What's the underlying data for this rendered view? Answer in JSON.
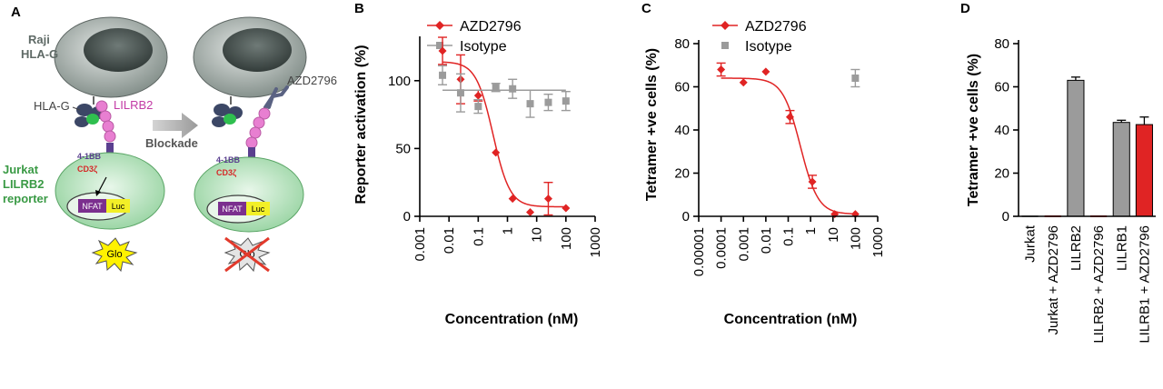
{
  "panels": {
    "a": {
      "letter": "A",
      "cell_top_label_1": "Raji",
      "cell_top_label_2": "HLA-G",
      "hla_label": "HLA-G",
      "lilrb2_label": "LILRB2",
      "antibody_label": "AZD2796",
      "blockade_label": "Blockade",
      "reporter_label_1": "Jurkat",
      "reporter_label_2": "LILRB2",
      "reporter_label_3": "reporter",
      "domain_1": "4-1BB",
      "domain_2": "CD3ζ",
      "nfat_label": "NFAT",
      "luc_label": "Luc",
      "glo_label": "Glo",
      "colors": {
        "cell_gray": "#8e9a95",
        "nucleus": "#4a5552",
        "reporter_green": "#bfe3c4",
        "lilrb2_pink": "#e87fd1",
        "arrow_gray": "#b5b5b5",
        "nfat_purple": "#7b2f8e",
        "luc_yellow": "#f2ef27",
        "burst_yellow": "#fff200",
        "cross_red": "#e23a2c"
      }
    },
    "b": {
      "letter": "B"
    },
    "c": {
      "letter": "C"
    },
    "d": {
      "letter": "D"
    }
  },
  "chart_data": [
    {
      "panel": "B",
      "type": "scatter",
      "xscale": "log",
      "xlim": [
        0.001,
        1000
      ],
      "ylim": [
        0,
        130
      ],
      "xlabel": "Concentration (nM)",
      "ylabel": "Reporter activation (%)",
      "x_ticks": [
        0.001,
        0.01,
        0.1,
        1,
        10,
        100,
        1000
      ],
      "x_tick_labels": [
        "0.001",
        "0.01",
        "0.1",
        "1",
        "10",
        "100",
        "1000"
      ],
      "y_ticks": [
        0,
        50,
        100
      ],
      "y_tick_labels": [
        "0",
        "50",
        "100"
      ],
      "legend_position": "top-left",
      "series": [
        {
          "name": "AZD2796",
          "color": "#e02424",
          "marker": "diamond",
          "points": [
            {
              "x": 0.006,
              "y": 122,
              "err": 10
            },
            {
              "x": 0.025,
              "y": 101,
              "err": 18
            },
            {
              "x": 0.1,
              "y": 89,
              "err": 4
            },
            {
              "x": 0.4,
              "y": 47,
              "err": 0
            },
            {
              "x": 1.5,
              "y": 13,
              "err": 0
            },
            {
              "x": 6,
              "y": 3,
              "err": 0
            },
            {
              "x": 25,
              "y": 13,
              "err": 12
            },
            {
              "x": 100,
              "y": 6,
              "err": 0
            }
          ],
          "fit": {
            "top": 114,
            "bottom": 7,
            "ic50": 0.32,
            "hill": 1.5
          }
        },
        {
          "name": "Isotype",
          "color": "#9b9b9b",
          "marker": "square",
          "points": [
            {
              "x": 0.006,
              "y": 104,
              "err": 7
            },
            {
              "x": 0.025,
              "y": 91,
              "err": 14
            },
            {
              "x": 0.1,
              "y": 81,
              "err": 5
            },
            {
              "x": 0.4,
              "y": 95,
              "err": 3
            },
            {
              "x": 1.5,
              "y": 94,
              "err": 7
            },
            {
              "x": 6,
              "y": 83,
              "err": 10
            },
            {
              "x": 25,
              "y": 84,
              "err": 6
            },
            {
              "x": 100,
              "y": 85,
              "err": 7
            }
          ],
          "fit": {
            "flat": 93
          }
        }
      ]
    },
    {
      "panel": "C",
      "type": "scatter",
      "xscale": "log",
      "xlim": [
        1e-05,
        1000
      ],
      "ylim": [
        0,
        80
      ],
      "xlabel": "Concentration (nM)",
      "ylabel": "Tetramer +ve cells (%)",
      "x_ticks": [
        1e-05,
        0.0001,
        0.001,
        0.01,
        0.1,
        1,
        10,
        100,
        1000
      ],
      "x_tick_labels": [
        "0.00001",
        "0.0001",
        "0.001",
        "0.01",
        "0.1",
        "1",
        "10",
        "100",
        "1000"
      ],
      "y_ticks": [
        0,
        20,
        40,
        60,
        80
      ],
      "y_tick_labels": [
        "0",
        "20",
        "40",
        "60",
        "80"
      ],
      "legend_position": "top-left",
      "series": [
        {
          "name": "AZD2796",
          "color": "#e02424",
          "marker": "diamond",
          "points": [
            {
              "x": 0.0001,
              "y": 68,
              "err": 3
            },
            {
              "x": 0.001,
              "y": 62,
              "err": 0
            },
            {
              "x": 0.01,
              "y": 67,
              "err": 0
            },
            {
              "x": 0.12,
              "y": 46,
              "err": 3
            },
            {
              "x": 1.2,
              "y": 16,
              "err": 3
            },
            {
              "x": 12,
              "y": 1,
              "err": 0
            },
            {
              "x": 100,
              "y": 1,
              "err": 0
            }
          ],
          "fit": {
            "top": 64,
            "bottom": 1,
            "ic50": 0.35,
            "hill": 1.1
          }
        },
        {
          "name": "Isotype",
          "color": "#9b9b9b",
          "marker": "square",
          "points": [
            {
              "x": 100,
              "y": 64,
              "err": 4
            }
          ]
        }
      ]
    },
    {
      "panel": "D",
      "type": "bar",
      "ylim": [
        0,
        80
      ],
      "ylabel": "Tetramer +ve cells (%)",
      "y_ticks": [
        0,
        20,
        40,
        60,
        80
      ],
      "y_tick_labels": [
        "0",
        "20",
        "40",
        "60",
        "80"
      ],
      "categories": [
        "Jurkat",
        "Jurkat + AZD2796",
        "LILRB2",
        "LILRB2 + AZD2796",
        "LILRB1",
        "LILRB1 + AZD2796"
      ],
      "values": [
        0,
        0,
        63,
        0,
        43.5,
        42.5
      ],
      "errors": [
        0,
        0,
        1.5,
        0,
        1,
        3.5
      ],
      "colors": [
        "#9b9b9b",
        "#e02424",
        "#9b9b9b",
        "#e02424",
        "#9b9b9b",
        "#e02424"
      ]
    }
  ]
}
